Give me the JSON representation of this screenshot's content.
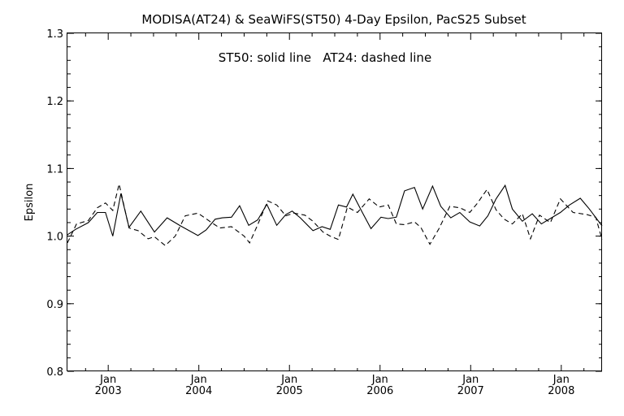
{
  "chart_data": {
    "type": "line",
    "title": "MODISA(AT24) & SeaWiFS(ST50) 4-Day Epsilon, PacS25 Subset",
    "annotation": "ST50: solid line   AT24: dashed line",
    "ylabel": "Epsilon",
    "xlabel": "",
    "ylim": [
      0.8,
      1.3
    ],
    "xlim": [
      2002.55,
      2008.45
    ],
    "yticks": [
      "0.8",
      "0.9",
      "1.0",
      "1.1",
      "1.2",
      "1.3"
    ],
    "xticks": [
      {
        "top": "Jan",
        "bottom": "2003",
        "x": 2003.0
      },
      {
        "top": "Jan",
        "bottom": "2004",
        "x": 2004.0
      },
      {
        "top": "Jan",
        "bottom": "2005",
        "x": 2005.0
      },
      {
        "top": "Jan",
        "bottom": "2006",
        "x": 2006.0
      },
      {
        "top": "Jan",
        "bottom": "2007",
        "x": 2007.0
      },
      {
        "top": "Jan",
        "bottom": "2008",
        "x": 2008.0
      }
    ],
    "series": [
      {
        "name": "ST50",
        "style": "solid",
        "x": [
          2002.55,
          2002.64,
          2002.78,
          2002.88,
          2002.97,
          2003.05,
          2003.14,
          2003.23,
          2003.36,
          2003.51,
          2003.65,
          2003.8,
          2003.99,
          2004.08,
          2004.18,
          2004.26,
          2004.36,
          2004.45,
          2004.55,
          2004.65,
          2004.75,
          2004.86,
          2004.96,
          2005.03,
          2005.12,
          2005.26,
          2005.36,
          2005.45,
          2005.54,
          2005.63,
          2005.7,
          2005.8,
          2005.9,
          2006.01,
          2006.09,
          2006.18,
          2006.27,
          2006.38,
          2006.47,
          2006.58,
          2006.67,
          2006.78,
          2006.88,
          2006.99,
          2007.1,
          2007.19,
          2007.28,
          2007.38,
          2007.46,
          2007.57,
          2007.68,
          2007.78,
          2007.99,
          2008.09,
          2008.21,
          2008.31,
          2008.45
        ],
        "y": [
          1.002,
          1.01,
          1.02,
          1.035,
          1.035,
          1.0,
          1.063,
          1.013,
          1.037,
          1.006,
          1.027,
          1.015,
          1.001,
          1.009,
          1.025,
          1.027,
          1.028,
          1.045,
          1.016,
          1.024,
          1.047,
          1.016,
          1.032,
          1.037,
          1.027,
          1.008,
          1.014,
          1.01,
          1.046,
          1.043,
          1.062,
          1.036,
          1.011,
          1.028,
          1.026,
          1.028,
          1.067,
          1.072,
          1.04,
          1.074,
          1.044,
          1.027,
          1.035,
          1.021,
          1.015,
          1.03,
          1.055,
          1.075,
          1.04,
          1.022,
          1.033,
          1.018,
          1.035,
          1.046,
          1.056,
          1.04,
          1.015
        ]
      },
      {
        "name": "AT24",
        "style": "dashed",
        "x": [
          2002.55,
          2002.65,
          2002.78,
          2002.88,
          2002.97,
          2003.05,
          2003.12,
          2003.23,
          2003.33,
          2003.44,
          2003.51,
          2003.63,
          2003.74,
          2003.85,
          2003.99,
          2004.13,
          2004.23,
          2004.36,
          2004.5,
          2004.56,
          2004.64,
          2004.76,
          2004.86,
          2004.96,
          2005.05,
          2005.17,
          2005.26,
          2005.37,
          2005.45,
          2005.54,
          2005.64,
          2005.75,
          2005.88,
          2005.99,
          2006.09,
          2006.18,
          2006.27,
          2006.38,
          2006.45,
          2006.55,
          2006.65,
          2006.77,
          2006.88,
          2006.99,
          2007.07,
          2007.18,
          2007.28,
          2007.37,
          2007.46,
          2007.57,
          2007.66,
          2007.76,
          2007.88,
          2007.99,
          2008.13,
          2008.28,
          2008.38,
          2008.45
        ],
        "y": [
          0.99,
          1.018,
          1.023,
          1.042,
          1.049,
          1.038,
          1.077,
          1.012,
          1.008,
          0.996,
          0.999,
          0.986,
          1.0,
          1.03,
          1.034,
          1.021,
          1.012,
          1.014,
          1.0,
          0.99,
          1.014,
          1.052,
          1.046,
          1.03,
          1.034,
          1.031,
          1.022,
          1.006,
          1.0,
          0.995,
          1.043,
          1.035,
          1.055,
          1.043,
          1.046,
          1.018,
          1.017,
          1.021,
          1.013,
          0.988,
          1.011,
          1.044,
          1.042,
          1.035,
          1.048,
          1.069,
          1.039,
          1.025,
          1.018,
          1.033,
          0.996,
          1.031,
          1.02,
          1.055,
          1.035,
          1.032,
          1.028,
          0.995
        ]
      }
    ],
    "grid": false,
    "legend": "none"
  }
}
